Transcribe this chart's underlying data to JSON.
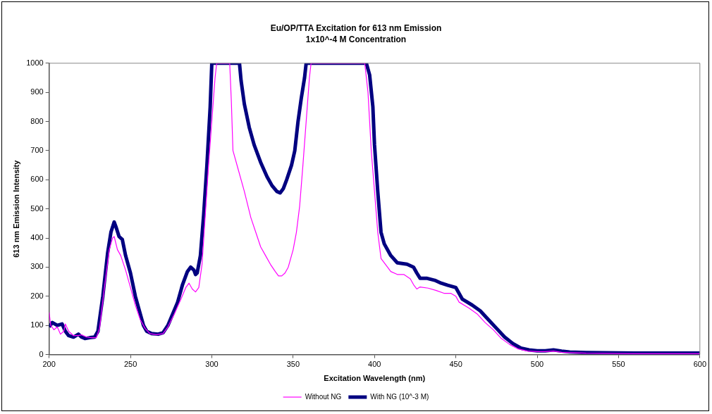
{
  "chart_data": {
    "type": "line",
    "title": "Eu/OP/TTA Excitation for 613 nm Emission",
    "subtitle": "1x10^-4 M Concentration",
    "xlabel": "Excitation Wavelength (nm)",
    "ylabel": "613 nm Emission Intensity",
    "xlim": [
      200,
      600
    ],
    "xticks": [
      200,
      250,
      300,
      350,
      400,
      450,
      500,
      550,
      600
    ],
    "ylim": [
      0,
      1000
    ],
    "yticks": [
      0,
      100,
      200,
      300,
      400,
      500,
      600,
      700,
      800,
      900,
      1000
    ],
    "grid": false,
    "legend": "bottom",
    "marker": "none",
    "line_style": "solid",
    "series": [
      {
        "name": "With NG (10^-3 M)",
        "color": "#000080",
        "x": [
          200,
          202,
          205,
          208,
          210,
          212,
          215,
          218,
          220,
          222,
          225,
          228,
          230,
          233,
          236,
          238,
          240,
          241,
          243,
          245,
          247,
          250,
          253,
          256,
          258,
          260,
          263,
          267,
          270,
          273,
          276,
          279,
          282,
          285,
          287,
          289,
          290,
          291,
          293,
          295,
          297,
          299,
          300,
          302,
          316,
          317,
          318,
          320,
          323,
          326,
          330,
          334,
          337,
          340,
          342,
          344,
          346,
          349,
          351,
          353,
          355,
          357,
          358,
          395,
          397,
          399,
          400,
          402,
          404,
          406,
          410,
          414,
          420,
          424,
          426,
          428,
          432,
          437,
          441,
          445,
          450,
          452,
          454,
          460,
          465,
          470,
          475,
          480,
          485,
          490,
          495,
          500,
          505,
          510,
          515,
          520,
          530,
          540,
          560,
          580,
          600
        ],
        "values": [
          95,
          110,
          100,
          105,
          80,
          65,
          60,
          70,
          60,
          55,
          58,
          60,
          80,
          200,
          350,
          420,
          455,
          440,
          405,
          395,
          340,
          280,
          200,
          140,
          100,
          80,
          72,
          70,
          75,
          100,
          140,
          180,
          240,
          285,
          300,
          290,
          275,
          280,
          340,
          480,
          650,
          850,
          1000,
          1000,
          1000,
          1000,
          940,
          860,
          780,
          720,
          660,
          610,
          580,
          560,
          555,
          570,
          600,
          650,
          700,
          800,
          880,
          950,
          1000,
          1000,
          960,
          850,
          720,
          560,
          420,
          380,
          340,
          315,
          310,
          300,
          280,
          262,
          262,
          255,
          245,
          238,
          230,
          210,
          190,
          170,
          150,
          120,
          90,
          60,
          38,
          22,
          16,
          13,
          13,
          16,
          12,
          9,
          7,
          6,
          5,
          5,
          5
        ]
      },
      {
        "name": "Without NG",
        "color": "#ff00ff",
        "x": [
          200,
          201,
          203,
          205,
          207,
          209,
          210,
          212,
          215,
          218,
          220,
          223,
          226,
          229,
          231,
          234,
          237,
          239,
          240,
          242,
          244,
          247,
          250,
          253,
          256,
          259,
          262,
          266,
          270,
          273,
          277,
          281,
          284,
          286,
          288,
          290,
          292,
          294,
          296,
          298,
          300,
          302,
          303,
          311,
          312,
          313,
          316,
          320,
          324,
          327,
          330,
          333,
          336,
          339,
          341,
          343,
          345,
          347,
          350,
          352,
          354,
          356,
          358,
          360,
          361,
          394,
          396,
          398,
          400,
          402,
          404,
          408,
          410,
          414,
          418,
          422,
          424,
          426,
          428,
          433,
          438,
          443,
          447,
          450,
          452,
          458,
          463,
          468,
          473,
          478,
          483,
          488,
          494,
          500,
          505,
          510,
          515,
          530,
          560,
          600
        ],
        "values": [
          145,
          100,
          85,
          95,
          70,
          80,
          105,
          80,
          65,
          65,
          68,
          60,
          58,
          58,
          90,
          230,
          360,
          400,
          405,
          360,
          340,
          290,
          230,
          170,
          120,
          90,
          72,
          68,
          72,
          95,
          140,
          190,
          230,
          245,
          225,
          215,
          230,
          310,
          480,
          650,
          800,
          950,
          1000,
          1000,
          870,
          700,
          640,
          560,
          470,
          420,
          370,
          340,
          310,
          285,
          270,
          270,
          280,
          300,
          360,
          420,
          510,
          650,
          800,
          950,
          1000,
          1000,
          900,
          700,
          560,
          420,
          330,
          300,
          285,
          275,
          275,
          260,
          240,
          225,
          232,
          228,
          220,
          210,
          210,
          200,
          180,
          160,
          140,
          110,
          85,
          55,
          35,
          20,
          12,
          10,
          10,
          12,
          8,
          5,
          3,
          3
        ]
      }
    ]
  }
}
